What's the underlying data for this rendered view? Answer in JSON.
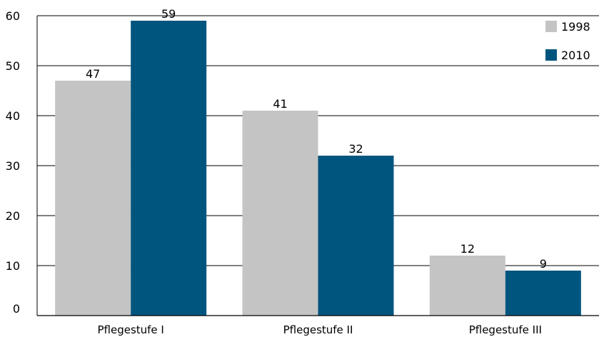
{
  "chart_data": {
    "type": "bar",
    "categories": [
      "Pflegestufe I",
      "Pflegestufe II",
      "Pflegestufe III"
    ],
    "series": [
      {
        "name": "1998",
        "values": [
          47,
          41,
          12
        ],
        "color": "#c4c4c4"
      },
      {
        "name": "2010",
        "values": [
          59,
          32,
          9
        ],
        "color": "#00557f"
      }
    ],
    "ylim": [
      0,
      60
    ],
    "yticks": [
      "0",
      "10",
      "20",
      "30",
      "40",
      "50",
      "60"
    ],
    "grid": true,
    "legend": "top-right"
  }
}
